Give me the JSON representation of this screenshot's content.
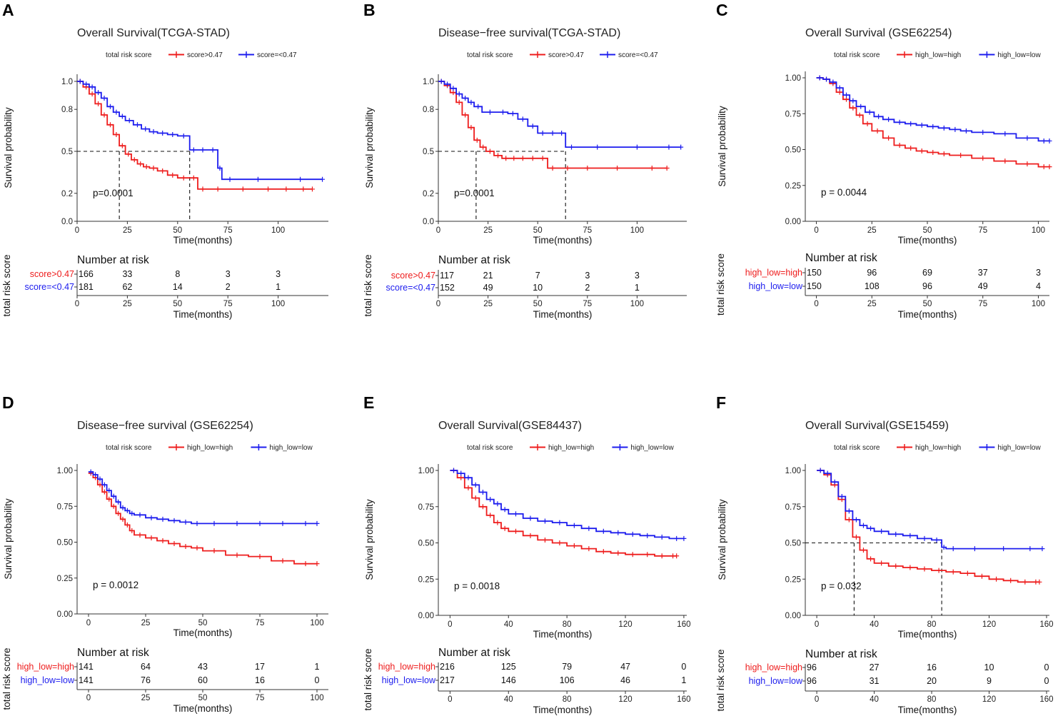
{
  "figure_panels": [
    "A",
    "B",
    "C",
    "D",
    "E",
    "F"
  ],
  "chart_data": [
    {
      "panel": "A",
      "type": "line",
      "title": "Overall Survival(TCGA-STAD)",
      "xlabel": "Time(months)",
      "ylabel": "Survival probability",
      "xlim": [
        0,
        125
      ],
      "xticks": [
        0,
        25,
        50,
        75,
        100
      ],
      "ylim": [
        0,
        1
      ],
      "yticks": [
        0.0,
        0.2,
        0.5,
        0.8,
        1.0
      ],
      "ytick_labels": [
        "0.0",
        "0.2",
        "0.5",
        "0.8",
        "1.0"
      ],
      "pvalue": "p=0.0001",
      "median_line": true,
      "medians": [
        21,
        56
      ],
      "legend": {
        "title": "total risk score",
        "labels": [
          "score>0.47",
          "score=<0.47"
        ]
      },
      "series": [
        {
          "name": "score>0.47",
          "color": "#ee1c1c",
          "x": [
            0,
            3,
            6,
            9,
            12,
            15,
            18,
            21,
            24,
            27,
            30,
            33,
            36,
            40,
            45,
            50,
            56,
            60,
            65,
            75,
            90,
            100,
            108,
            117
          ],
          "y": [
            1.0,
            0.96,
            0.91,
            0.84,
            0.76,
            0.69,
            0.62,
            0.54,
            0.48,
            0.44,
            0.41,
            0.39,
            0.38,
            0.36,
            0.33,
            0.31,
            0.31,
            0.23,
            0.23,
            0.23,
            0.23,
            0.23,
            0.23,
            0.23
          ]
        },
        {
          "name": "score=<0.47",
          "color": "#1c1cee",
          "x": [
            0,
            3,
            6,
            9,
            12,
            15,
            18,
            21,
            24,
            28,
            32,
            36,
            40,
            45,
            50,
            56,
            60,
            65,
            70,
            72,
            80,
            100,
            122
          ],
          "y": [
            1.0,
            0.98,
            0.96,
            0.92,
            0.88,
            0.82,
            0.78,
            0.75,
            0.72,
            0.69,
            0.66,
            0.64,
            0.63,
            0.62,
            0.61,
            0.51,
            0.51,
            0.51,
            0.38,
            0.3,
            0.3,
            0.3,
            0.3
          ]
        }
      ],
      "risk_table": {
        "title": "Number at risk",
        "ylabel": "total risk score",
        "times": [
          0,
          25,
          50,
          75,
          100
        ],
        "groups": [
          {
            "label": "score>0.47",
            "counts": [
              "166",
              "33",
              "8",
              "3",
              "3"
            ]
          },
          {
            "label": "score=<0.47",
            "counts": [
              "181",
              "62",
              "14",
              "2",
              "1"
            ]
          }
        ]
      }
    },
    {
      "panel": "B",
      "type": "line",
      "title": "Disease−free survival(TCGA-STAD)",
      "xlabel": "Time(months)",
      "ylabel": "Survival probability",
      "xlim": [
        0,
        125
      ],
      "xticks": [
        0,
        25,
        50,
        75,
        100
      ],
      "ylim": [
        0,
        1
      ],
      "yticks": [
        0.0,
        0.2,
        0.5,
        0.8,
        1.0
      ],
      "ytick_labels": [
        "0.0",
        "0.2",
        "0.5",
        "0.8",
        "1.0"
      ],
      "pvalue": "p=0.0001",
      "median_line": true,
      "medians": [
        19,
        64
      ],
      "legend": {
        "title": "total risk score",
        "labels": [
          "score>0.47",
          "score=<0.47"
        ]
      },
      "series": [
        {
          "name": "score>0.47",
          "color": "#ee1c1c",
          "x": [
            0,
            3,
            6,
            9,
            12,
            15,
            18,
            21,
            24,
            28,
            32,
            36,
            40,
            45,
            50,
            55,
            60,
            70,
            80,
            100,
            115
          ],
          "y": [
            1.0,
            0.97,
            0.92,
            0.85,
            0.76,
            0.67,
            0.58,
            0.53,
            0.5,
            0.47,
            0.45,
            0.45,
            0.45,
            0.45,
            0.45,
            0.38,
            0.38,
            0.38,
            0.38,
            0.38,
            0.38
          ]
        },
        {
          "name": "score=<0.47",
          "color": "#1c1cee",
          "x": [
            0,
            3,
            6,
            9,
            12,
            15,
            18,
            22,
            30,
            35,
            40,
            45,
            50,
            55,
            60,
            64,
            70,
            90,
            110,
            122
          ],
          "y": [
            1.0,
            0.98,
            0.95,
            0.91,
            0.88,
            0.85,
            0.82,
            0.78,
            0.78,
            0.77,
            0.73,
            0.68,
            0.63,
            0.63,
            0.63,
            0.53,
            0.53,
            0.53,
            0.53,
            0.53
          ]
        }
      ],
      "risk_table": {
        "title": "Number at risk",
        "ylabel": "total risk score",
        "times": [
          0,
          25,
          50,
          75,
          100
        ],
        "groups": [
          {
            "label": "score>0.47",
            "counts": [
              "117",
              "21",
              "7",
              "3",
              "3"
            ]
          },
          {
            "label": "score=<0.47",
            "counts": [
              "152",
              "49",
              "10",
              "2",
              "1"
            ]
          }
        ]
      }
    },
    {
      "panel": "C",
      "type": "line",
      "title": "Overall Survival (GSE62254)",
      "xlabel": "Time(months)",
      "ylabel": "Survival probability",
      "xlim": [
        -5,
        105
      ],
      "xticks": [
        0,
        25,
        50,
        75,
        100
      ],
      "ylim": [
        0,
        1
      ],
      "yticks": [
        0.0,
        0.25,
        0.5,
        0.75,
        1.0
      ],
      "ytick_labels": [
        "0.00",
        "0.25",
        "0.50",
        "0.75",
        "1.00"
      ],
      "pvalue": "p = 0.0044",
      "median_line": false,
      "medians": [],
      "legend": {
        "title": "total risk score",
        "labels": [
          "high_low=high",
          "high_low=low"
        ]
      },
      "series": [
        {
          "name": "high_low=high",
          "color": "#ee1c1c",
          "x": [
            0,
            3,
            6,
            9,
            12,
            15,
            18,
            21,
            25,
            30,
            35,
            40,
            45,
            50,
            55,
            60,
            70,
            80,
            90,
            100,
            105
          ],
          "y": [
            1.0,
            0.99,
            0.96,
            0.9,
            0.85,
            0.79,
            0.74,
            0.68,
            0.63,
            0.58,
            0.53,
            0.51,
            0.49,
            0.48,
            0.47,
            0.46,
            0.44,
            0.42,
            0.4,
            0.38,
            0.38
          ]
        },
        {
          "name": "high_low=low",
          "color": "#1c1cee",
          "x": [
            0,
            3,
            6,
            9,
            12,
            15,
            18,
            22,
            26,
            30,
            35,
            40,
            45,
            50,
            55,
            60,
            65,
            70,
            80,
            90,
            100,
            105
          ],
          "y": [
            1.0,
            0.99,
            0.97,
            0.93,
            0.88,
            0.84,
            0.8,
            0.76,
            0.73,
            0.71,
            0.69,
            0.68,
            0.67,
            0.66,
            0.65,
            0.64,
            0.63,
            0.62,
            0.61,
            0.58,
            0.56,
            0.56
          ]
        }
      ],
      "risk_table": {
        "title": "Number at risk",
        "ylabel": "total risk score",
        "times": [
          0,
          25,
          50,
          75,
          100
        ],
        "groups": [
          {
            "label": "high_low=high",
            "counts": [
              "150",
              "96",
              "69",
              "37",
              "3"
            ]
          },
          {
            "label": "high_low=low",
            "counts": [
              "150",
              "108",
              "96",
              "49",
              "4"
            ]
          }
        ]
      }
    },
    {
      "panel": "D",
      "type": "line",
      "title": "Disease−free survival (GSE62254)",
      "xlabel": "Time(months)",
      "ylabel": "Survival probability",
      "xlim": [
        -5,
        105
      ],
      "xticks": [
        0,
        25,
        50,
        75,
        100
      ],
      "ylim": [
        0,
        1
      ],
      "yticks": [
        0.0,
        0.25,
        0.5,
        0.75,
        1.0
      ],
      "ytick_labels": [
        "0.00",
        "0.25",
        "0.50",
        "0.75",
        "1.00"
      ],
      "pvalue": "p = 0.0012",
      "median_line": false,
      "medians": [],
      "legend": {
        "title": "total risk score",
        "labels": [
          "high_low=high",
          "high_low=low"
        ]
      },
      "series": [
        {
          "name": "high_low=high",
          "color": "#ee1c1c",
          "x": [
            0,
            2,
            4,
            6,
            8,
            10,
            12,
            14,
            16,
            18,
            20,
            25,
            30,
            35,
            40,
            45,
            50,
            60,
            70,
            80,
            90,
            100
          ],
          "y": [
            0.98,
            0.95,
            0.9,
            0.85,
            0.8,
            0.75,
            0.7,
            0.66,
            0.62,
            0.58,
            0.55,
            0.53,
            0.51,
            0.49,
            0.47,
            0.46,
            0.44,
            0.41,
            0.4,
            0.37,
            0.35,
            0.35
          ]
        },
        {
          "name": "high_low=low",
          "color": "#1c1cee",
          "x": [
            0,
            2,
            4,
            6,
            8,
            10,
            12,
            14,
            16,
            18,
            20,
            25,
            30,
            35,
            40,
            45,
            50,
            60,
            70,
            80,
            90,
            100
          ],
          "y": [
            0.99,
            0.97,
            0.94,
            0.9,
            0.86,
            0.82,
            0.78,
            0.74,
            0.72,
            0.7,
            0.69,
            0.67,
            0.66,
            0.65,
            0.64,
            0.63,
            0.63,
            0.63,
            0.63,
            0.63,
            0.63,
            0.63
          ]
        }
      ],
      "risk_table": {
        "title": "Number at risk",
        "ylabel": "total risk score",
        "times": [
          0,
          25,
          50,
          75,
          100
        ],
        "groups": [
          {
            "label": "high_low=high",
            "counts": [
              "141",
              "64",
              "43",
              "17",
              "1"
            ]
          },
          {
            "label": "high_low=low",
            "counts": [
              "141",
              "76",
              "60",
              "16",
              "0"
            ]
          }
        ]
      }
    },
    {
      "panel": "E",
      "type": "line",
      "title": "Overall Survival(GSE84437)",
      "xlabel": "Time(months)",
      "ylabel": "Survival probability",
      "xlim": [
        -8,
        162
      ],
      "xticks": [
        0,
        40,
        80,
        120,
        160
      ],
      "ylim": [
        0,
        1
      ],
      "yticks": [
        0.0,
        0.25,
        0.5,
        0.75,
        1.0
      ],
      "ytick_labels": [
        "0.00",
        "0.25",
        "0.50",
        "0.75",
        "1.00"
      ],
      "pvalue": "p = 0.0018",
      "median_line": false,
      "medians": [],
      "legend": {
        "title": "total risk score",
        "labels": [
          "high_low=high",
          "high_low=low"
        ]
      },
      "series": [
        {
          "name": "high_low=high",
          "color": "#ee1c1c",
          "x": [
            0,
            5,
            10,
            15,
            20,
            25,
            30,
            35,
            40,
            50,
            60,
            70,
            80,
            90,
            100,
            110,
            120,
            130,
            140,
            150,
            155
          ],
          "y": [
            1.0,
            0.95,
            0.88,
            0.81,
            0.75,
            0.69,
            0.64,
            0.6,
            0.58,
            0.55,
            0.52,
            0.5,
            0.48,
            0.46,
            0.44,
            0.43,
            0.42,
            0.42,
            0.41,
            0.41,
            0.41
          ]
        },
        {
          "name": "high_low=low",
          "color": "#1c1cee",
          "x": [
            0,
            5,
            10,
            15,
            20,
            25,
            30,
            35,
            40,
            50,
            60,
            70,
            80,
            90,
            100,
            110,
            120,
            130,
            140,
            150,
            160
          ],
          "y": [
            1.0,
            0.98,
            0.95,
            0.9,
            0.85,
            0.8,
            0.77,
            0.73,
            0.7,
            0.67,
            0.65,
            0.64,
            0.62,
            0.6,
            0.58,
            0.57,
            0.56,
            0.55,
            0.54,
            0.53,
            0.53
          ]
        }
      ],
      "risk_table": {
        "title": "Number at risk",
        "ylabel": "total risk score",
        "times": [
          0,
          40,
          80,
          120,
          160
        ],
        "groups": [
          {
            "label": "high_low=high",
            "counts": [
              "216",
              "125",
              "79",
              "47",
              "0"
            ]
          },
          {
            "label": "high_low=low",
            "counts": [
              "217",
              "146",
              "106",
              "46",
              "1"
            ]
          }
        ]
      }
    },
    {
      "panel": "F",
      "type": "line",
      "title": "Overall Survival(GSE15459)",
      "xlabel": "Time(months)",
      "ylabel": "Survival probability",
      "xlim": [
        -8,
        162
      ],
      "xticks": [
        0,
        40,
        80,
        120,
        160
      ],
      "ylim": [
        0,
        1
      ],
      "yticks": [
        0.0,
        0.25,
        0.5,
        0.75,
        1.0
      ],
      "ytick_labels": [
        "0.00",
        "0.25",
        "0.50",
        "0.75",
        "1.00"
      ],
      "pvalue": "p = 0.032",
      "median_line": true,
      "medians": [
        26,
        87
      ],
      "legend": {
        "title": "total risk score",
        "labels": [
          "high_low=high",
          "high_low=low"
        ]
      },
      "series": [
        {
          "name": "high_low=high",
          "color": "#ee1c1c",
          "x": [
            0,
            5,
            10,
            15,
            20,
            25,
            30,
            35,
            40,
            50,
            60,
            70,
            80,
            90,
            100,
            110,
            120,
            130,
            140,
            150,
            155
          ],
          "y": [
            1.0,
            0.97,
            0.9,
            0.8,
            0.66,
            0.54,
            0.45,
            0.39,
            0.36,
            0.34,
            0.33,
            0.32,
            0.31,
            0.3,
            0.29,
            0.27,
            0.25,
            0.24,
            0.23,
            0.23,
            0.23
          ]
        },
        {
          "name": "high_low=low",
          "color": "#1c1cee",
          "x": [
            0,
            5,
            10,
            15,
            20,
            25,
            30,
            35,
            40,
            50,
            60,
            70,
            80,
            87,
            90,
            100,
            120,
            140,
            157
          ],
          "y": [
            1.0,
            0.98,
            0.92,
            0.82,
            0.72,
            0.66,
            0.62,
            0.6,
            0.58,
            0.56,
            0.55,
            0.53,
            0.52,
            0.47,
            0.46,
            0.46,
            0.46,
            0.46,
            0.46
          ]
        }
      ],
      "risk_table": {
        "title": "Number at risk",
        "ylabel": "total risk score",
        "times": [
          0,
          40,
          80,
          120,
          160
        ],
        "groups": [
          {
            "label": "high_low=high",
            "counts": [
              "96",
              "27",
              "16",
              "10",
              "0"
            ]
          },
          {
            "label": "high_low=low",
            "counts": [
              "96",
              "31",
              "20",
              "9",
              "0"
            ]
          }
        ]
      }
    }
  ]
}
